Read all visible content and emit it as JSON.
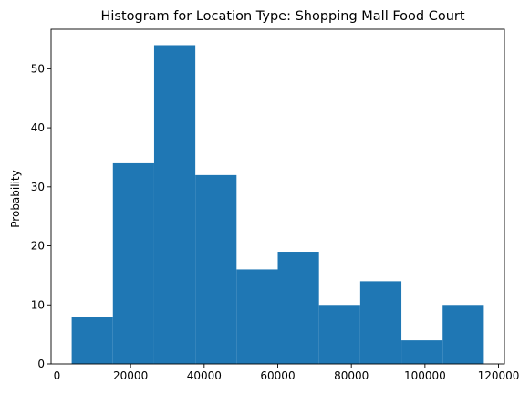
{
  "chart_data": {
    "type": "bar",
    "title": "Histogram for Location Type: Shopping Mall Food Court",
    "xlabel": "",
    "ylabel": "Probability",
    "bin_edges": [
      4000,
      15200,
      26400,
      37600,
      48800,
      60000,
      71200,
      82400,
      93600,
      104800,
      116000
    ],
    "values": [
      8,
      34,
      54,
      32,
      16,
      19,
      10,
      14,
      4,
      10
    ],
    "xlim": [
      -1600,
      121600
    ],
    "ylim": [
      0,
      56.7
    ],
    "xticks": [
      0,
      20000,
      40000,
      60000,
      80000,
      100000,
      120000
    ],
    "xtick_labels": [
      "0",
      "20000",
      "40000",
      "60000",
      "80000",
      "100000",
      "120000"
    ],
    "yticks": [
      0,
      10,
      20,
      30,
      40,
      50
    ],
    "ytick_labels": [
      "0",
      "10",
      "20",
      "30",
      "40",
      "50"
    ],
    "bar_color": "#1f77b4",
    "grid": false
  }
}
